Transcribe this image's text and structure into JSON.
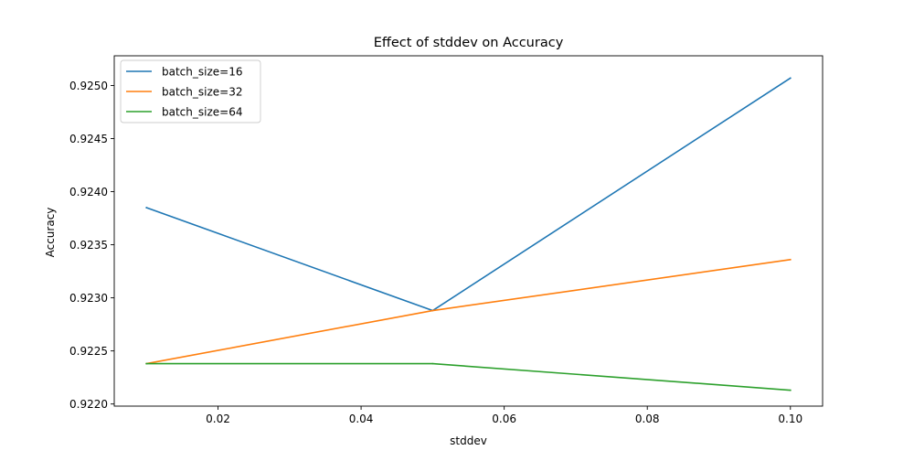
{
  "chart_data": {
    "type": "line",
    "title": "Effect of stddev on Accuracy",
    "xlabel": "stddev",
    "ylabel": "Accuracy",
    "x": [
      0.01,
      0.05,
      0.1
    ],
    "xlim": [
      0.0055,
      0.1045
    ],
    "ylim": [
      0.92198,
      0.92528
    ],
    "xticks": [
      0.02,
      0.04,
      0.06,
      0.08,
      0.1
    ],
    "xtick_labels": [
      "0.02",
      "0.04",
      "0.06",
      "0.08",
      "0.10"
    ],
    "yticks": [
      0.922,
      0.9225,
      0.923,
      0.9235,
      0.924,
      0.9245,
      0.925
    ],
    "ytick_labels": [
      "0.9220",
      "0.9225",
      "0.9230",
      "0.9235",
      "0.9240",
      "0.9245",
      "0.9250"
    ],
    "grid": false,
    "legend_position": "top-left",
    "series": [
      {
        "name": "batch_size=16",
        "color": "#1f77b4",
        "values": [
          0.92385,
          0.92288,
          0.92507
        ]
      },
      {
        "name": "batch_size=32",
        "color": "#ff7f0e",
        "values": [
          0.92238,
          0.92288,
          0.92336
        ]
      },
      {
        "name": "batch_size=64",
        "color": "#2ca02c",
        "values": [
          0.92238,
          0.92238,
          0.92213
        ]
      }
    ]
  }
}
